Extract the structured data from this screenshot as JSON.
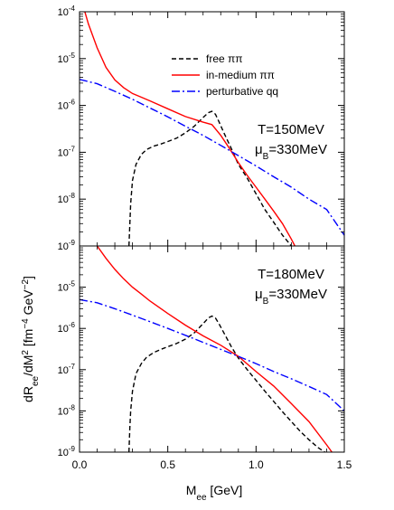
{
  "chart_data": [
    {
      "type": "line",
      "panel": "top",
      "title": "",
      "xlabel": "M",
      "xlabel_sub": "ee",
      "xlabel_unit": " [GeV]",
      "ylabel": "",
      "xlim": [
        0,
        1.5
      ],
      "ylim": [
        1e-09,
        0.0001
      ],
      "yscale": "log",
      "grid": false,
      "legend_placement": "top-right",
      "annotation": {
        "line1": "T=150MeV",
        "line2_main": "μ",
        "line2_sub": "B",
        "line2_rest": "=330MeV"
      },
      "series": [
        {
          "name": "free ππ",
          "color": "#000000",
          "dash": "dashed",
          "x": [
            0.28,
            0.285,
            0.29,
            0.3,
            0.32,
            0.35,
            0.38,
            0.42,
            0.46,
            0.5,
            0.55,
            0.6,
            0.65,
            0.7,
            0.73,
            0.75,
            0.77,
            0.79,
            0.82,
            0.86,
            0.9,
            0.95,
            1.0,
            1.05,
            1.1,
            1.15,
            1.2
          ],
          "y": [
            1e-09,
            3e-09,
            8e-09,
            2.5e-08,
            5.5e-08,
            9e-08,
            1.15e-07,
            1.35e-07,
            1.5e-07,
            1.7e-07,
            2e-07,
            2.6e-07,
            3.6e-07,
            5.5e-07,
            7e-07,
            7.5e-07,
            6.5e-07,
            4.5e-07,
            2.5e-07,
            1.2e-07,
            5.5e-08,
            2.8e-08,
            1.3e-08,
            6e-09,
            3.2e-09,
            1.7e-09,
            1e-09
          ]
        },
        {
          "name": "in-medium ππ",
          "color": "#ff0000",
          "dash": "solid",
          "x": [
            0.03,
            0.05,
            0.1,
            0.15,
            0.2,
            0.25,
            0.3,
            0.35,
            0.4,
            0.5,
            0.6,
            0.7,
            0.75,
            0.8,
            0.85,
            0.9,
            0.95,
            1.0,
            1.05,
            1.1,
            1.15,
            1.2,
            1.22
          ],
          "y": [
            0.0001,
            5.5e-05,
            1.7e-05,
            6.5e-06,
            3.5e-06,
            2.4e-06,
            1.8e-06,
            1.5e-06,
            1.25e-06,
            8.5e-07,
            5.8e-07,
            4.4e-07,
            3.9e-07,
            2.3e-07,
            1.2e-07,
            6e-08,
            3.2e-08,
            1.8e-08,
            1e-08,
            5.5e-09,
            3e-09,
            1.4e-09,
            1e-09
          ]
        },
        {
          "name": "perturbative qq",
          "color": "#0000ff",
          "dash": "dashdot",
          "x": [
            0.0,
            0.1,
            0.2,
            0.3,
            0.4,
            0.5,
            0.6,
            0.7,
            0.8,
            0.9,
            1.0,
            1.1,
            1.2,
            1.3,
            1.4,
            1.5
          ],
          "y": [
            3.6e-06,
            2.9e-06,
            2e-06,
            1.35e-06,
            8.8e-07,
            5.7e-07,
            3.6e-07,
            2.3e-07,
            1.4e-07,
            8.5e-08,
            5.1e-08,
            3e-08,
            1.8e-08,
            1e-08,
            6e-09,
            1.7e-09
          ]
        }
      ]
    },
    {
      "type": "line",
      "panel": "bottom",
      "title": "",
      "xlabel": "M",
      "xlabel_sub": "ee",
      "xlabel_unit": " [GeV]",
      "ylabel": "dR",
      "ylabel_parts": {
        "main": "dR",
        "sub": "ee",
        "mid": "/dM",
        "sup": "2",
        "unit": " [fm",
        "unit_sup": "−4",
        "unit2": " GeV",
        "unit2_sup": "−2",
        "end": "]"
      },
      "xlim": [
        0,
        1.5
      ],
      "ylim": [
        1e-09,
        0.0001
      ],
      "yscale": "log",
      "grid": false,
      "annotation": {
        "line1": "T=180MeV",
        "line2_main": "μ",
        "line2_sub": "B",
        "line2_rest": "=330MeV"
      },
      "series": [
        {
          "name": "free ππ",
          "color": "#000000",
          "dash": "dashed",
          "x": [
            0.28,
            0.285,
            0.29,
            0.3,
            0.32,
            0.35,
            0.38,
            0.42,
            0.46,
            0.5,
            0.55,
            0.6,
            0.65,
            0.7,
            0.73,
            0.75,
            0.77,
            0.79,
            0.82,
            0.86,
            0.9,
            0.95,
            1.0,
            1.05,
            1.1,
            1.15,
            1.2,
            1.25,
            1.3,
            1.35,
            1.39
          ],
          "y": [
            1e-09,
            4e-09,
            1e-08,
            3e-08,
            8e-08,
            1.4e-07,
            2e-07,
            2.6e-07,
            3.1e-07,
            3.6e-07,
            4.3e-07,
            5.5e-07,
            7.8e-07,
            1.3e-06,
            1.8e-06,
            2e-06,
            1.8e-06,
            1.3e-06,
            7.5e-07,
            3.6e-07,
            1.9e-07,
            1e-07,
            5.5e-08,
            3e-08,
            1.7e-08,
            9.5e-09,
            5.5e-09,
            3.2e-09,
            2e-09,
            1.3e-09,
            1e-09
          ]
        },
        {
          "name": "in-medium ππ",
          "color": "#ff0000",
          "dash": "solid",
          "x": [
            0.1,
            0.15,
            0.2,
            0.25,
            0.3,
            0.35,
            0.4,
            0.5,
            0.6,
            0.7,
            0.8,
            0.9,
            1.0,
            1.1,
            1.2,
            1.3,
            1.4,
            1.43
          ],
          "y": [
            0.0001,
            5e-05,
            2.7e-05,
            1.6e-05,
            1e-05,
            6.8e-06,
            4.6e-06,
            2.3e-06,
            1.2e-06,
            6.6e-07,
            3.9e-07,
            2.1e-07,
            9e-08,
            4e-08,
            1.5e-08,
            5.5e-09,
            1.5e-09,
            1e-09
          ]
        },
        {
          "name": "perturbative qq",
          "color": "#0000ff",
          "dash": "dashdot",
          "x": [
            0.0,
            0.1,
            0.2,
            0.3,
            0.4,
            0.5,
            0.6,
            0.7,
            0.8,
            0.9,
            1.0,
            1.1,
            1.2,
            1.3,
            1.4,
            1.5
          ],
          "y": [
            5e-06,
            4.2e-06,
            3e-06,
            2.1e-06,
            1.45e-06,
            1e-06,
            6.8e-07,
            4.6e-07,
            3.1e-07,
            2.1e-07,
            1.4e-07,
            9e-08,
            6e-08,
            3.9e-08,
            2.5e-08,
            1e-08
          ]
        }
      ]
    }
  ],
  "axes": {
    "x_ticks": [
      {
        "value": 0.0,
        "label": "0.0"
      },
      {
        "value": 0.5,
        "label": "0.5"
      },
      {
        "value": 1.0,
        "label": "1.0"
      },
      {
        "value": 1.5,
        "label": "1.5"
      }
    ],
    "y_ticks": [
      {
        "exp": -9,
        "label": "10",
        "sup": "-9"
      },
      {
        "exp": -8,
        "label": "10",
        "sup": "-8"
      },
      {
        "exp": -7,
        "label": "10",
        "sup": "-7"
      },
      {
        "exp": -6,
        "label": "10",
        "sup": "-6"
      },
      {
        "exp": -5,
        "label": "10",
        "sup": "-5"
      },
      {
        "exp": -4,
        "label": "10",
        "sup": "-4"
      }
    ]
  }
}
